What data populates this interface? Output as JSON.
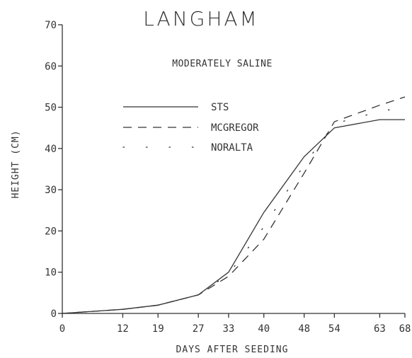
{
  "chart_data": {
    "type": "line",
    "title": "LANGHAM",
    "subtitle": "MODERATELY SALINE",
    "xlabel": "DAYS AFTER SEEDING",
    "ylabel": "HEIGHT (CM)",
    "xlim": [
      0,
      68
    ],
    "ylim": [
      0,
      70
    ],
    "x_ticks": [
      0,
      12,
      19,
      27,
      33,
      40,
      48,
      54,
      63,
      68
    ],
    "x_tick_labels": [
      "0",
      "12",
      "19",
      "27",
      "33",
      "40",
      "48",
      "54",
      "63",
      "68"
    ],
    "y_ticks": [
      0,
      10,
      20,
      30,
      40,
      50,
      60,
      70
    ],
    "y_tick_labels": [
      "0",
      "10",
      "20",
      "30",
      "40",
      "50",
      "60",
      "70"
    ],
    "legend_position": "upper-left-center",
    "series": [
      {
        "name": "STS",
        "style": "solid",
        "x": [
          0,
          12,
          19,
          27,
          33,
          40,
          48,
          54,
          63,
          68
        ],
        "y": [
          0,
          1,
          2,
          4.5,
          10,
          24.5,
          38,
          45,
          47,
          47
        ]
      },
      {
        "name": "MCGREGOR",
        "style": "dashed",
        "x": [
          0,
          12,
          19,
          27,
          33,
          40,
          48,
          54,
          63,
          68
        ],
        "y": [
          0,
          1,
          2,
          4.5,
          9,
          18,
          34,
          46.5,
          50.5,
          52.5
        ]
      },
      {
        "name": "NORALTA",
        "style": "dotted",
        "x": [
          0,
          12,
          19,
          27,
          33,
          40,
          48,
          54,
          63,
          68
        ],
        "y": [
          0,
          1,
          2,
          4.5,
          9.5,
          21,
          36,
          46,
          49,
          50
        ]
      }
    ]
  }
}
